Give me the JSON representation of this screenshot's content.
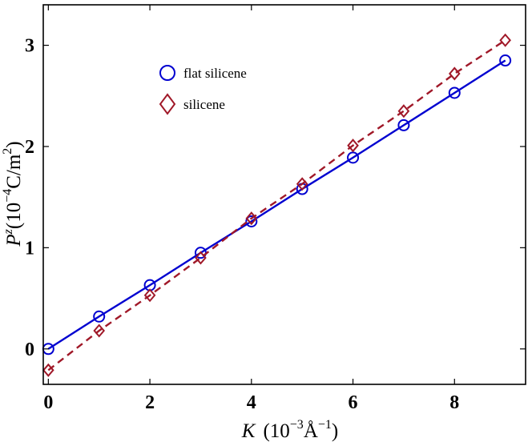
{
  "chart_data": {
    "type": "line",
    "title": "",
    "xlabel": "K (10^-3 Å^-1)",
    "ylabel": "P^z (10^-4 C/m^2)",
    "xlim": [
      -0.1,
      9.4
    ],
    "ylim": [
      -0.35,
      3.4
    ],
    "xticks": [
      0,
      2,
      4,
      6,
      8
    ],
    "yticks": [
      0,
      1,
      2,
      3
    ],
    "grid": false,
    "legend_position": "top-left",
    "series": [
      {
        "name": "flat silicene",
        "color": "#0000d0",
        "marker": "circle",
        "line_style": "solid",
        "x": [
          0,
          1,
          2,
          3,
          4,
          5,
          6,
          7,
          8,
          9
        ],
        "y": [
          0.0,
          0.32,
          0.63,
          0.95,
          1.26,
          1.58,
          1.89,
          2.21,
          2.53,
          2.85
        ]
      },
      {
        "name": "silicene",
        "color": "#a01828",
        "marker": "diamond",
        "line_style": "dashed",
        "x": [
          0,
          1,
          2,
          3,
          4,
          5,
          6,
          7,
          8,
          9
        ],
        "y": [
          -0.21,
          0.18,
          0.53,
          0.9,
          1.29,
          1.63,
          2.01,
          2.35,
          2.72,
          3.05
        ]
      }
    ]
  }
}
